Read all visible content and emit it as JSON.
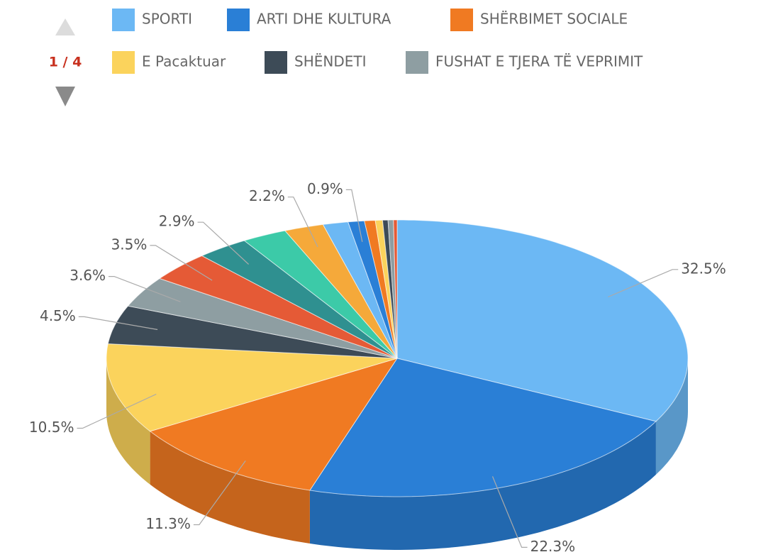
{
  "chart_data": {
    "type": "pie3d",
    "categories": [
      "SPORTI",
      "ARTI DHE KULTURA",
      "SHËRBIMET SOCIALE",
      "E Pacaktuar",
      "SHËNDETI",
      "FUSHAT E TJERA TË VEPRIMIT",
      null,
      null,
      null,
      null,
      null,
      null,
      null,
      null,
      null,
      null,
      null
    ],
    "values": [
      32.5,
      22.3,
      11.3,
      10.5,
      4.5,
      3.6,
      3.5,
      2.9,
      2.5,
      2.2,
      1.4,
      0.9,
      0.6,
      0.4,
      0.3,
      0.3,
      0.2
    ],
    "value_labels": [
      "32.5%",
      "22.3%",
      "11.3%",
      "10.5%",
      "4.5%",
      "3.6%",
      "3.5%",
      "2.9%",
      null,
      "2.2%",
      null,
      "0.9%",
      null,
      null,
      null,
      null,
      null
    ],
    "colors": [
      "#6cb8f4",
      "#2a7fd6",
      "#f07a22",
      "#fbd35c",
      "#3d4b57",
      "#8e9ea2",
      "#e55a36",
      "#2f9090",
      "#3ccaa8",
      "#f5a93a",
      "#6cb8f4",
      "#2a7fd6",
      "#f07a22",
      "#fbd35c",
      "#3d4b57",
      "#8e9ea2",
      "#e55a36"
    ],
    "legend_page": "1 / 4"
  }
}
